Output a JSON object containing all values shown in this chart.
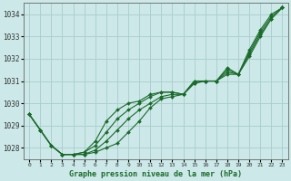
{
  "title": "Graphe pression niveau de la mer (hPa)",
  "bg_color": "#cce8e8",
  "grid_color": "#aacccc",
  "line_color": "#1a6b2a",
  "x_ticks": [
    0,
    1,
    2,
    3,
    4,
    5,
    6,
    7,
    8,
    9,
    10,
    11,
    12,
    13,
    14,
    15,
    16,
    17,
    18,
    19,
    20,
    21,
    22,
    23
  ],
  "ylim": [
    1027.5,
    1034.5
  ],
  "yticks": [
    1028,
    1029,
    1030,
    1031,
    1032,
    1033,
    1034
  ],
  "series": [
    [
      1029.5,
      1028.8,
      1028.1,
      1027.7,
      1027.7,
      1027.7,
      1027.8,
      1028.0,
      1028.2,
      1028.7,
      1029.2,
      1029.8,
      1030.2,
      1030.3,
      1030.4,
      1031.0,
      1031.0,
      1031.0,
      1031.3,
      1031.3,
      1032.1,
      1033.0,
      1033.8,
      1034.3
    ],
    [
      1029.5,
      1028.8,
      1028.1,
      1027.7,
      1027.7,
      1027.7,
      1027.9,
      1028.3,
      1028.8,
      1029.3,
      1029.7,
      1030.0,
      1030.3,
      1030.4,
      1030.4,
      1030.9,
      1031.0,
      1031.0,
      1031.4,
      1031.3,
      1032.2,
      1033.1,
      1033.8,
      1034.3
    ],
    [
      1029.5,
      1028.8,
      1028.1,
      1027.7,
      1027.7,
      1027.8,
      1028.1,
      1028.7,
      1029.3,
      1029.7,
      1030.0,
      1030.3,
      1030.5,
      1030.5,
      1030.4,
      1030.9,
      1031.0,
      1031.0,
      1031.5,
      1031.3,
      1032.3,
      1033.2,
      1033.9,
      1034.3
    ],
    [
      1029.5,
      1028.8,
      1028.1,
      1027.7,
      1027.7,
      1027.8,
      1028.3,
      1029.2,
      1029.7,
      1030.0,
      1030.1,
      1030.4,
      1030.5,
      1030.5,
      1030.4,
      1031.0,
      1031.0,
      1031.0,
      1031.6,
      1031.3,
      1032.4,
      1033.3,
      1034.0,
      1034.3
    ]
  ],
  "figwidth": 3.2,
  "figheight": 2.0,
  "dpi": 100
}
